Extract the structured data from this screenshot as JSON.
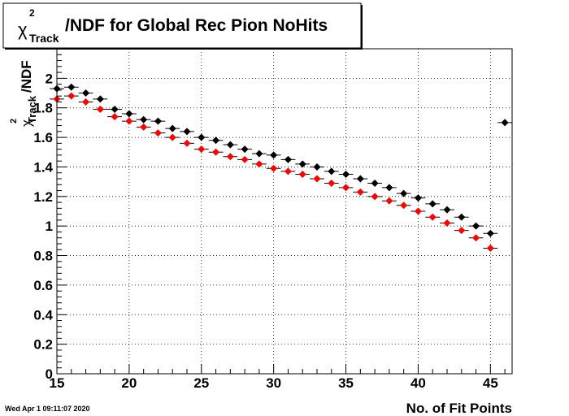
{
  "chart_data": {
    "type": "scatter",
    "title": "/NDF for Global Rec Pion NoHits",
    "title_symbol": "χ",
    "title_superscript": "2",
    "title_subscript": "Track",
    "xlabel": "No. of Fit Points",
    "ylabel_symbol": "χ",
    "ylabel_superscript": "2",
    "ylabel_subscript": "Track",
    "ylabel_suffix": "/NDF",
    "xlim": [
      15,
      46.5
    ],
    "ylim": [
      0,
      2.2
    ],
    "x_ticks": [
      "15",
      "20",
      "25",
      "30",
      "35",
      "40",
      "45"
    ],
    "y_ticks": [
      "0",
      "0.2",
      "0.4",
      "0.6",
      "0.8",
      "1",
      "1.2",
      "1.4",
      "1.6",
      "1.8",
      "2"
    ],
    "grid": true,
    "legend": "none",
    "series": [
      {
        "color": "#000000",
        "marker": "diamond",
        "x": [
          15,
          16,
          17,
          18,
          19,
          20,
          21,
          22,
          23,
          24,
          25,
          26,
          27,
          28,
          29,
          30,
          31,
          32,
          33,
          34,
          35,
          36,
          37,
          38,
          39,
          40,
          41,
          42,
          43,
          44,
          45,
          46
        ],
        "y": [
          1.93,
          1.94,
          1.9,
          1.86,
          1.79,
          1.76,
          1.72,
          1.71,
          1.66,
          1.64,
          1.6,
          1.58,
          1.55,
          1.52,
          1.49,
          1.48,
          1.45,
          1.42,
          1.4,
          1.37,
          1.35,
          1.32,
          1.29,
          1.26,
          1.22,
          1.19,
          1.15,
          1.11,
          1.06,
          1.0,
          0.95,
          1.7
        ]
      },
      {
        "color": "#ff0000",
        "marker": "diamond",
        "x": [
          15,
          16,
          17,
          18,
          19,
          20,
          21,
          22,
          23,
          24,
          25,
          26,
          27,
          28,
          29,
          30,
          31,
          32,
          33,
          34,
          35,
          36,
          37,
          38,
          39,
          40,
          41,
          42,
          43,
          44,
          45
        ],
        "y": [
          1.86,
          1.88,
          1.84,
          1.79,
          1.74,
          1.71,
          1.67,
          1.63,
          1.6,
          1.56,
          1.52,
          1.5,
          1.47,
          1.45,
          1.42,
          1.39,
          1.37,
          1.35,
          1.32,
          1.29,
          1.26,
          1.23,
          1.2,
          1.17,
          1.14,
          1.1,
          1.06,
          1.02,
          0.97,
          0.92,
          0.85
        ]
      }
    ]
  },
  "footer": {
    "timestamp": "Wed Apr  1 09:11:07 2020"
  }
}
